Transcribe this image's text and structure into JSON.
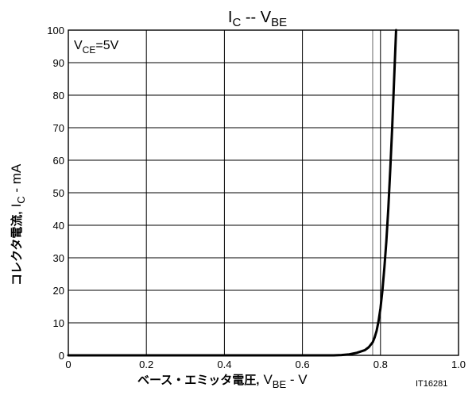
{
  "chart_data": {
    "type": "line",
    "title": {
      "main": "I",
      "main_sub": "C",
      "sep": " -- ",
      "second": "V",
      "second_sub": "BE"
    },
    "annotation": {
      "main": "V",
      "sub": "CE",
      "rest": "=5V"
    },
    "xlabel": {
      "jp": "ベース・エミッタ電圧",
      "comma": ",",
      "sym": "V",
      "sub": "BE",
      "unit": " - V"
    },
    "ylabel": {
      "jp": "コレクタ電流",
      "comma": ",",
      "sym": "I",
      "sub": "C",
      "unit": " - mA"
    },
    "figure_code": "IT16281",
    "xlim": [
      0,
      1.0
    ],
    "ylim": [
      0,
      100
    ],
    "x_ticks": [
      "0",
      "0.2",
      "0.4",
      "0.6",
      "0.8",
      "1.0"
    ],
    "y_ticks": [
      "0",
      "10",
      "20",
      "30",
      "40",
      "50",
      "60",
      "70",
      "80",
      "90",
      "100"
    ],
    "grid": true,
    "series": [
      {
        "x": [
          0.0,
          0.68,
          0.7,
          0.72,
          0.74,
          0.76,
          0.77,
          0.78,
          0.785,
          0.79,
          0.795,
          0.8,
          0.805,
          0.81,
          0.815,
          0.82,
          0.825,
          0.83,
          0.835,
          0.84
        ],
        "y": [
          0.0,
          0.0,
          0.1,
          0.3,
          0.8,
          1.6,
          2.5,
          4.0,
          5.5,
          7.5,
          10.5,
          14.5,
          20,
          27,
          35,
          45,
          57,
          70,
          85,
          100
        ]
      }
    ]
  }
}
